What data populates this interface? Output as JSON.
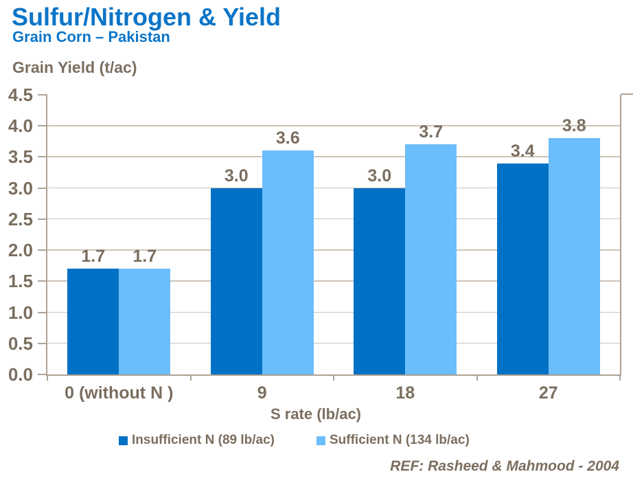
{
  "chart_data": {
    "type": "bar",
    "title": "Sulfur/Nitrogen & Yield",
    "subtitle": "Grain Corn – Pakistan",
    "ylabel": "Grain Yield (t/ac)",
    "xlabel": "S rate (lb/ac)",
    "categories": [
      "0 (without N )",
      "9",
      "18",
      "27"
    ],
    "series": [
      {
        "name": "Insufficient N (89 lb/ac)",
        "color": "#0071c5",
        "values": [
          1.7,
          3.0,
          3.0,
          3.4
        ]
      },
      {
        "name": "Sufficient N (134 lb/ac)",
        "color": "#6cbdfb",
        "values": [
          1.7,
          3.6,
          3.7,
          3.8
        ]
      }
    ],
    "ylim": [
      0,
      4.5
    ],
    "ytick_step": 0.5,
    "yticks": [
      "0.0",
      "0.5",
      "1.0",
      "1.5",
      "2.0",
      "2.5",
      "3.0",
      "3.5",
      "4.0",
      "4.5"
    ],
    "grid": true,
    "data_labels": true,
    "legend_position": "bottom"
  },
  "footer": {
    "reference": "REF: Rasheed & Mahmood - 2004"
  },
  "style": {
    "title_blue": "#0b75c8",
    "text_brown": "#7b6e5f",
    "axis_line_color": "#aea294",
    "gridline_color": "#cdc3b6"
  }
}
